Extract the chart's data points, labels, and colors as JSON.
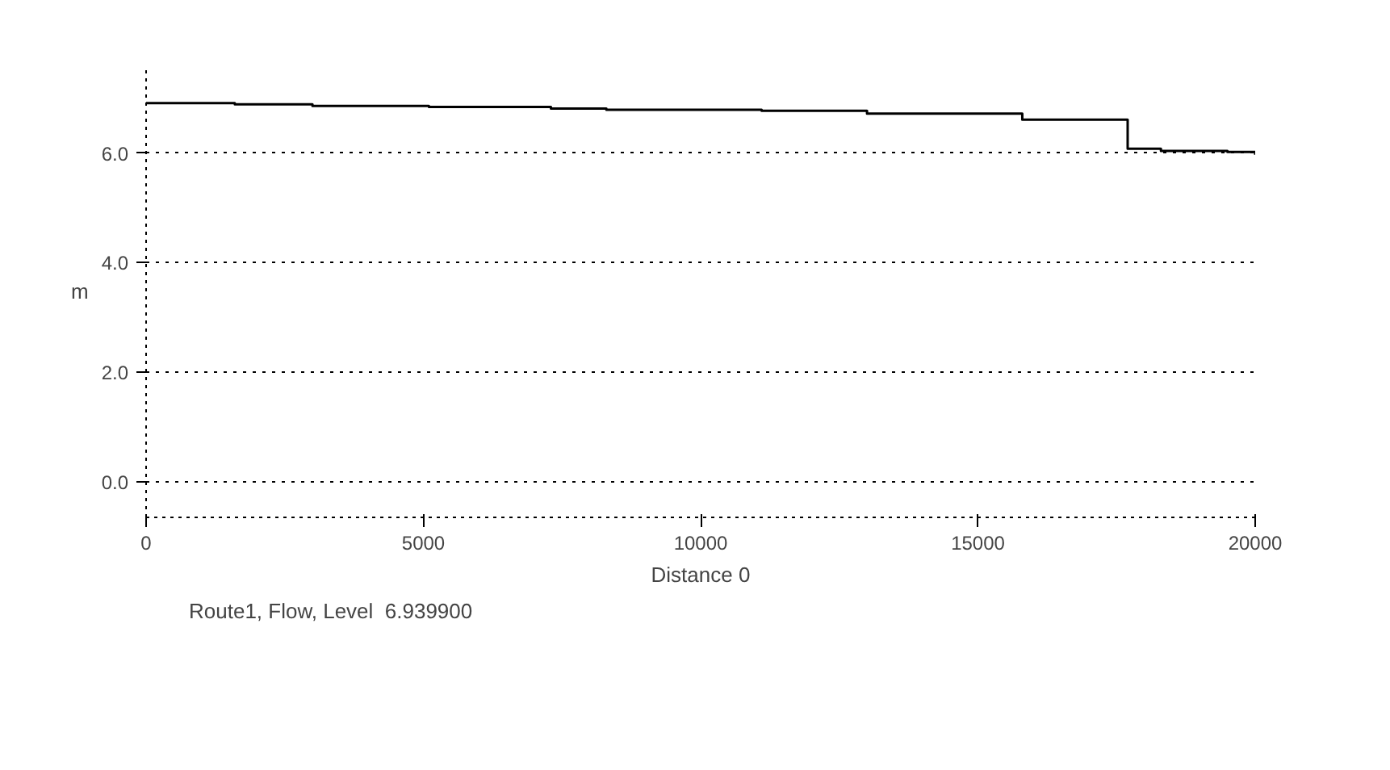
{
  "chart_data": {
    "type": "step",
    "xlabel": "Distance 0",
    "ylabel": "m",
    "x": [
      0,
      1600,
      3000,
      5100,
      7300,
      8300,
      11100,
      13000,
      15800,
      17700,
      18300,
      19500,
      20000
    ],
    "series": [
      {
        "name": "Route1, Flow, Level  6.939900",
        "color": "#000000",
        "values": [
          6.91,
          6.89,
          6.86,
          6.84,
          6.81,
          6.79,
          6.77,
          6.72,
          6.61,
          6.08,
          6.04,
          6.02,
          5.97
        ]
      }
    ],
    "xlim": [
      0,
      20000
    ],
    "ylim": [
      -0.65,
      7.6
    ],
    "xticks": [
      0,
      5000,
      10000,
      15000,
      20000
    ],
    "yticks": [
      {
        "value": 0,
        "label": "0.0"
      },
      {
        "value": 2,
        "label": "2.0"
      },
      {
        "value": 4,
        "label": "4.0"
      },
      {
        "value": 6,
        "label": "6.0"
      }
    ],
    "grid": "y",
    "legend": "bottom",
    "line_style": "solid",
    "marker": "none"
  }
}
